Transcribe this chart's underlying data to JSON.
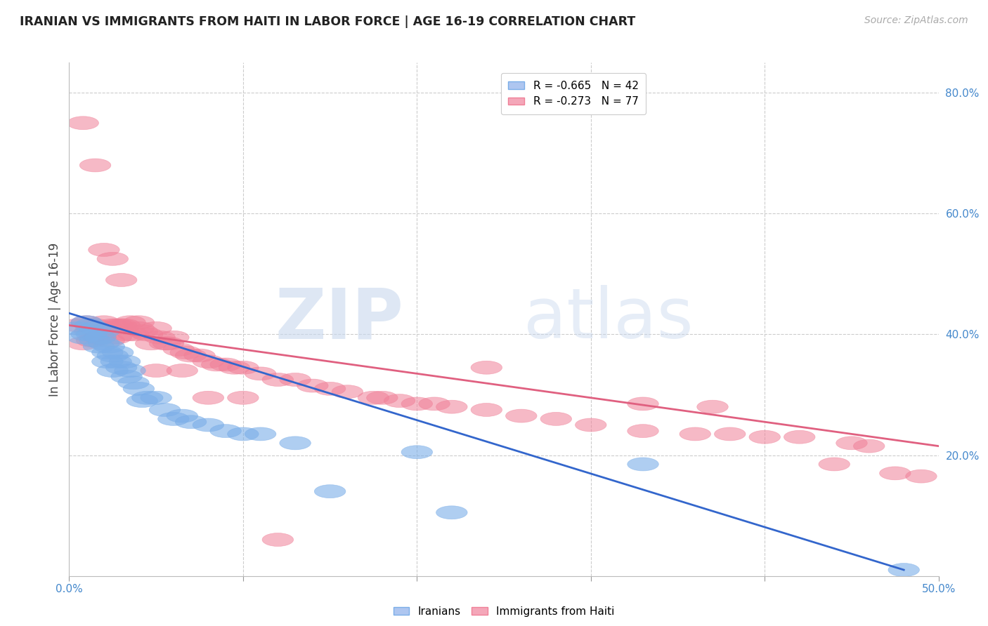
{
  "title": "IRANIAN VS IMMIGRANTS FROM HAITI IN LABOR FORCE | AGE 16-19 CORRELATION CHART",
  "source": "Source: ZipAtlas.com",
  "ylabel": "In Labor Force | Age 16-19",
  "xlim": [
    0.0,
    0.5
  ],
  "ylim": [
    0.0,
    0.85
  ],
  "iranian_color": "#7baee8",
  "haiti_color": "#f08098",
  "iranian_line_color": "#3366cc",
  "haiti_line_color": "#e06080",
  "watermark_zip": "ZIP",
  "watermark_atlas": "atlas",
  "background_color": "#ffffff",
  "grid_color": "#cccccc",
  "iranian_line_x0": 0.0,
  "iranian_line_y0": 0.435,
  "iranian_line_x1": 0.48,
  "iranian_line_y1": 0.01,
  "haiti_line_x0": 0.0,
  "haiti_line_y0": 0.415,
  "haiti_line_x1": 0.5,
  "haiti_line_y1": 0.215,
  "iranians_x": [
    0.005,
    0.008,
    0.01,
    0.01,
    0.012,
    0.013,
    0.015,
    0.015,
    0.017,
    0.018,
    0.02,
    0.02,
    0.022,
    0.022,
    0.023,
    0.025,
    0.025,
    0.027,
    0.028,
    0.03,
    0.032,
    0.033,
    0.035,
    0.037,
    0.04,
    0.042,
    0.045,
    0.05,
    0.055,
    0.06,
    0.065,
    0.07,
    0.08,
    0.09,
    0.1,
    0.11,
    0.13,
    0.15,
    0.2,
    0.22,
    0.33,
    0.48
  ],
  "iranians_y": [
    0.41,
    0.395,
    0.42,
    0.4,
    0.415,
    0.4,
    0.41,
    0.39,
    0.38,
    0.395,
    0.405,
    0.385,
    0.37,
    0.355,
    0.38,
    0.365,
    0.34,
    0.355,
    0.37,
    0.345,
    0.355,
    0.33,
    0.34,
    0.32,
    0.31,
    0.29,
    0.295,
    0.295,
    0.275,
    0.26,
    0.265,
    0.255,
    0.25,
    0.24,
    0.235,
    0.235,
    0.22,
    0.14,
    0.205,
    0.105,
    0.185,
    0.01
  ],
  "haiti_x": [
    0.005,
    0.008,
    0.01,
    0.012,
    0.013,
    0.015,
    0.017,
    0.018,
    0.02,
    0.022,
    0.023,
    0.025,
    0.027,
    0.028,
    0.03,
    0.032,
    0.033,
    0.035,
    0.037,
    0.04,
    0.042,
    0.045,
    0.047,
    0.05,
    0.052,
    0.055,
    0.057,
    0.06,
    0.063,
    0.067,
    0.07,
    0.075,
    0.08,
    0.085,
    0.09,
    0.095,
    0.1,
    0.11,
    0.12,
    0.13,
    0.14,
    0.15,
    0.16,
    0.175,
    0.19,
    0.2,
    0.21,
    0.22,
    0.24,
    0.26,
    0.28,
    0.3,
    0.33,
    0.36,
    0.38,
    0.4,
    0.42,
    0.45,
    0.46,
    0.008,
    0.015,
    0.02,
    0.025,
    0.03,
    0.04,
    0.05,
    0.065,
    0.08,
    0.1,
    0.12,
    0.18,
    0.24,
    0.33,
    0.37,
    0.44,
    0.475,
    0.49
  ],
  "haiti_y": [
    0.415,
    0.385,
    0.42,
    0.405,
    0.39,
    0.415,
    0.395,
    0.395,
    0.42,
    0.41,
    0.39,
    0.415,
    0.395,
    0.415,
    0.415,
    0.415,
    0.4,
    0.42,
    0.4,
    0.41,
    0.405,
    0.4,
    0.385,
    0.41,
    0.395,
    0.385,
    0.385,
    0.395,
    0.375,
    0.37,
    0.365,
    0.365,
    0.355,
    0.35,
    0.35,
    0.345,
    0.345,
    0.335,
    0.325,
    0.325,
    0.315,
    0.31,
    0.305,
    0.295,
    0.29,
    0.285,
    0.285,
    0.28,
    0.275,
    0.265,
    0.26,
    0.25,
    0.24,
    0.235,
    0.235,
    0.23,
    0.23,
    0.22,
    0.215,
    0.75,
    0.68,
    0.54,
    0.525,
    0.49,
    0.42,
    0.34,
    0.34,
    0.295,
    0.295,
    0.06,
    0.295,
    0.345,
    0.285,
    0.28,
    0.185,
    0.17,
    0.165
  ]
}
